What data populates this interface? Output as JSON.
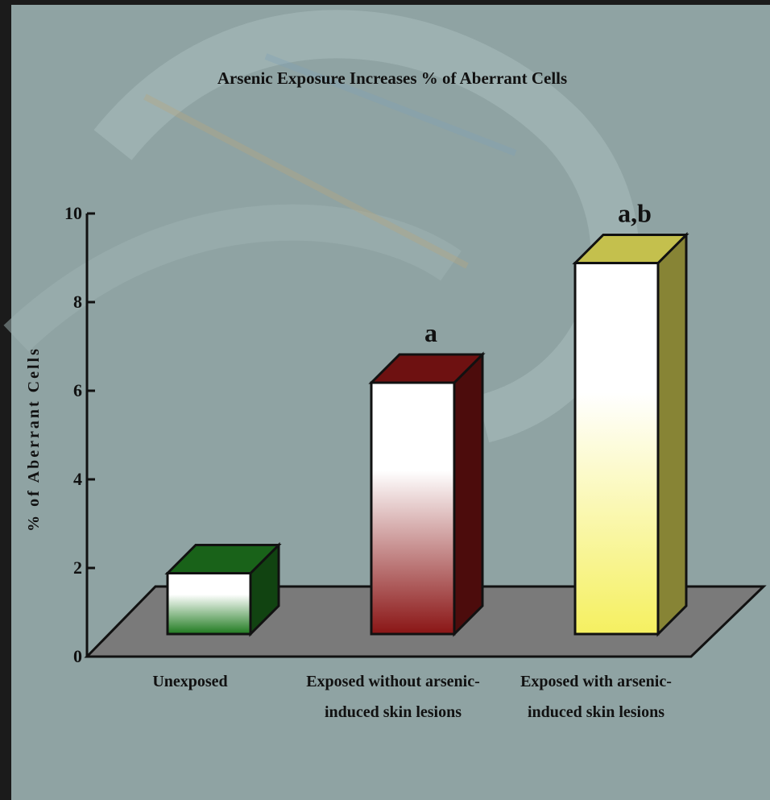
{
  "chart_data": {
    "type": "bar",
    "title": "Arsenic Exposure Increases % of Aberrant Cells",
    "xlabel": "",
    "ylabel": "% of Aberrant Cells",
    "ylim": [
      0,
      10
    ],
    "yticks": [
      "0",
      "2",
      "4",
      "6",
      "8",
      "10"
    ],
    "grid": false,
    "three_d": true,
    "categories": [
      [
        "Unexposed"
      ],
      [
        "Exposed without arsenic-",
        "induced skin lesions"
      ],
      [
        "Exposed with arsenic-",
        "induced skin lesions"
      ]
    ],
    "values": [
      2.1,
      6.4,
      9.1
    ],
    "annotations": [
      "",
      "a",
      "a,b"
    ],
    "colors": [
      "#1f7a1f",
      "#8a1515",
      "#f5f060"
    ]
  }
}
